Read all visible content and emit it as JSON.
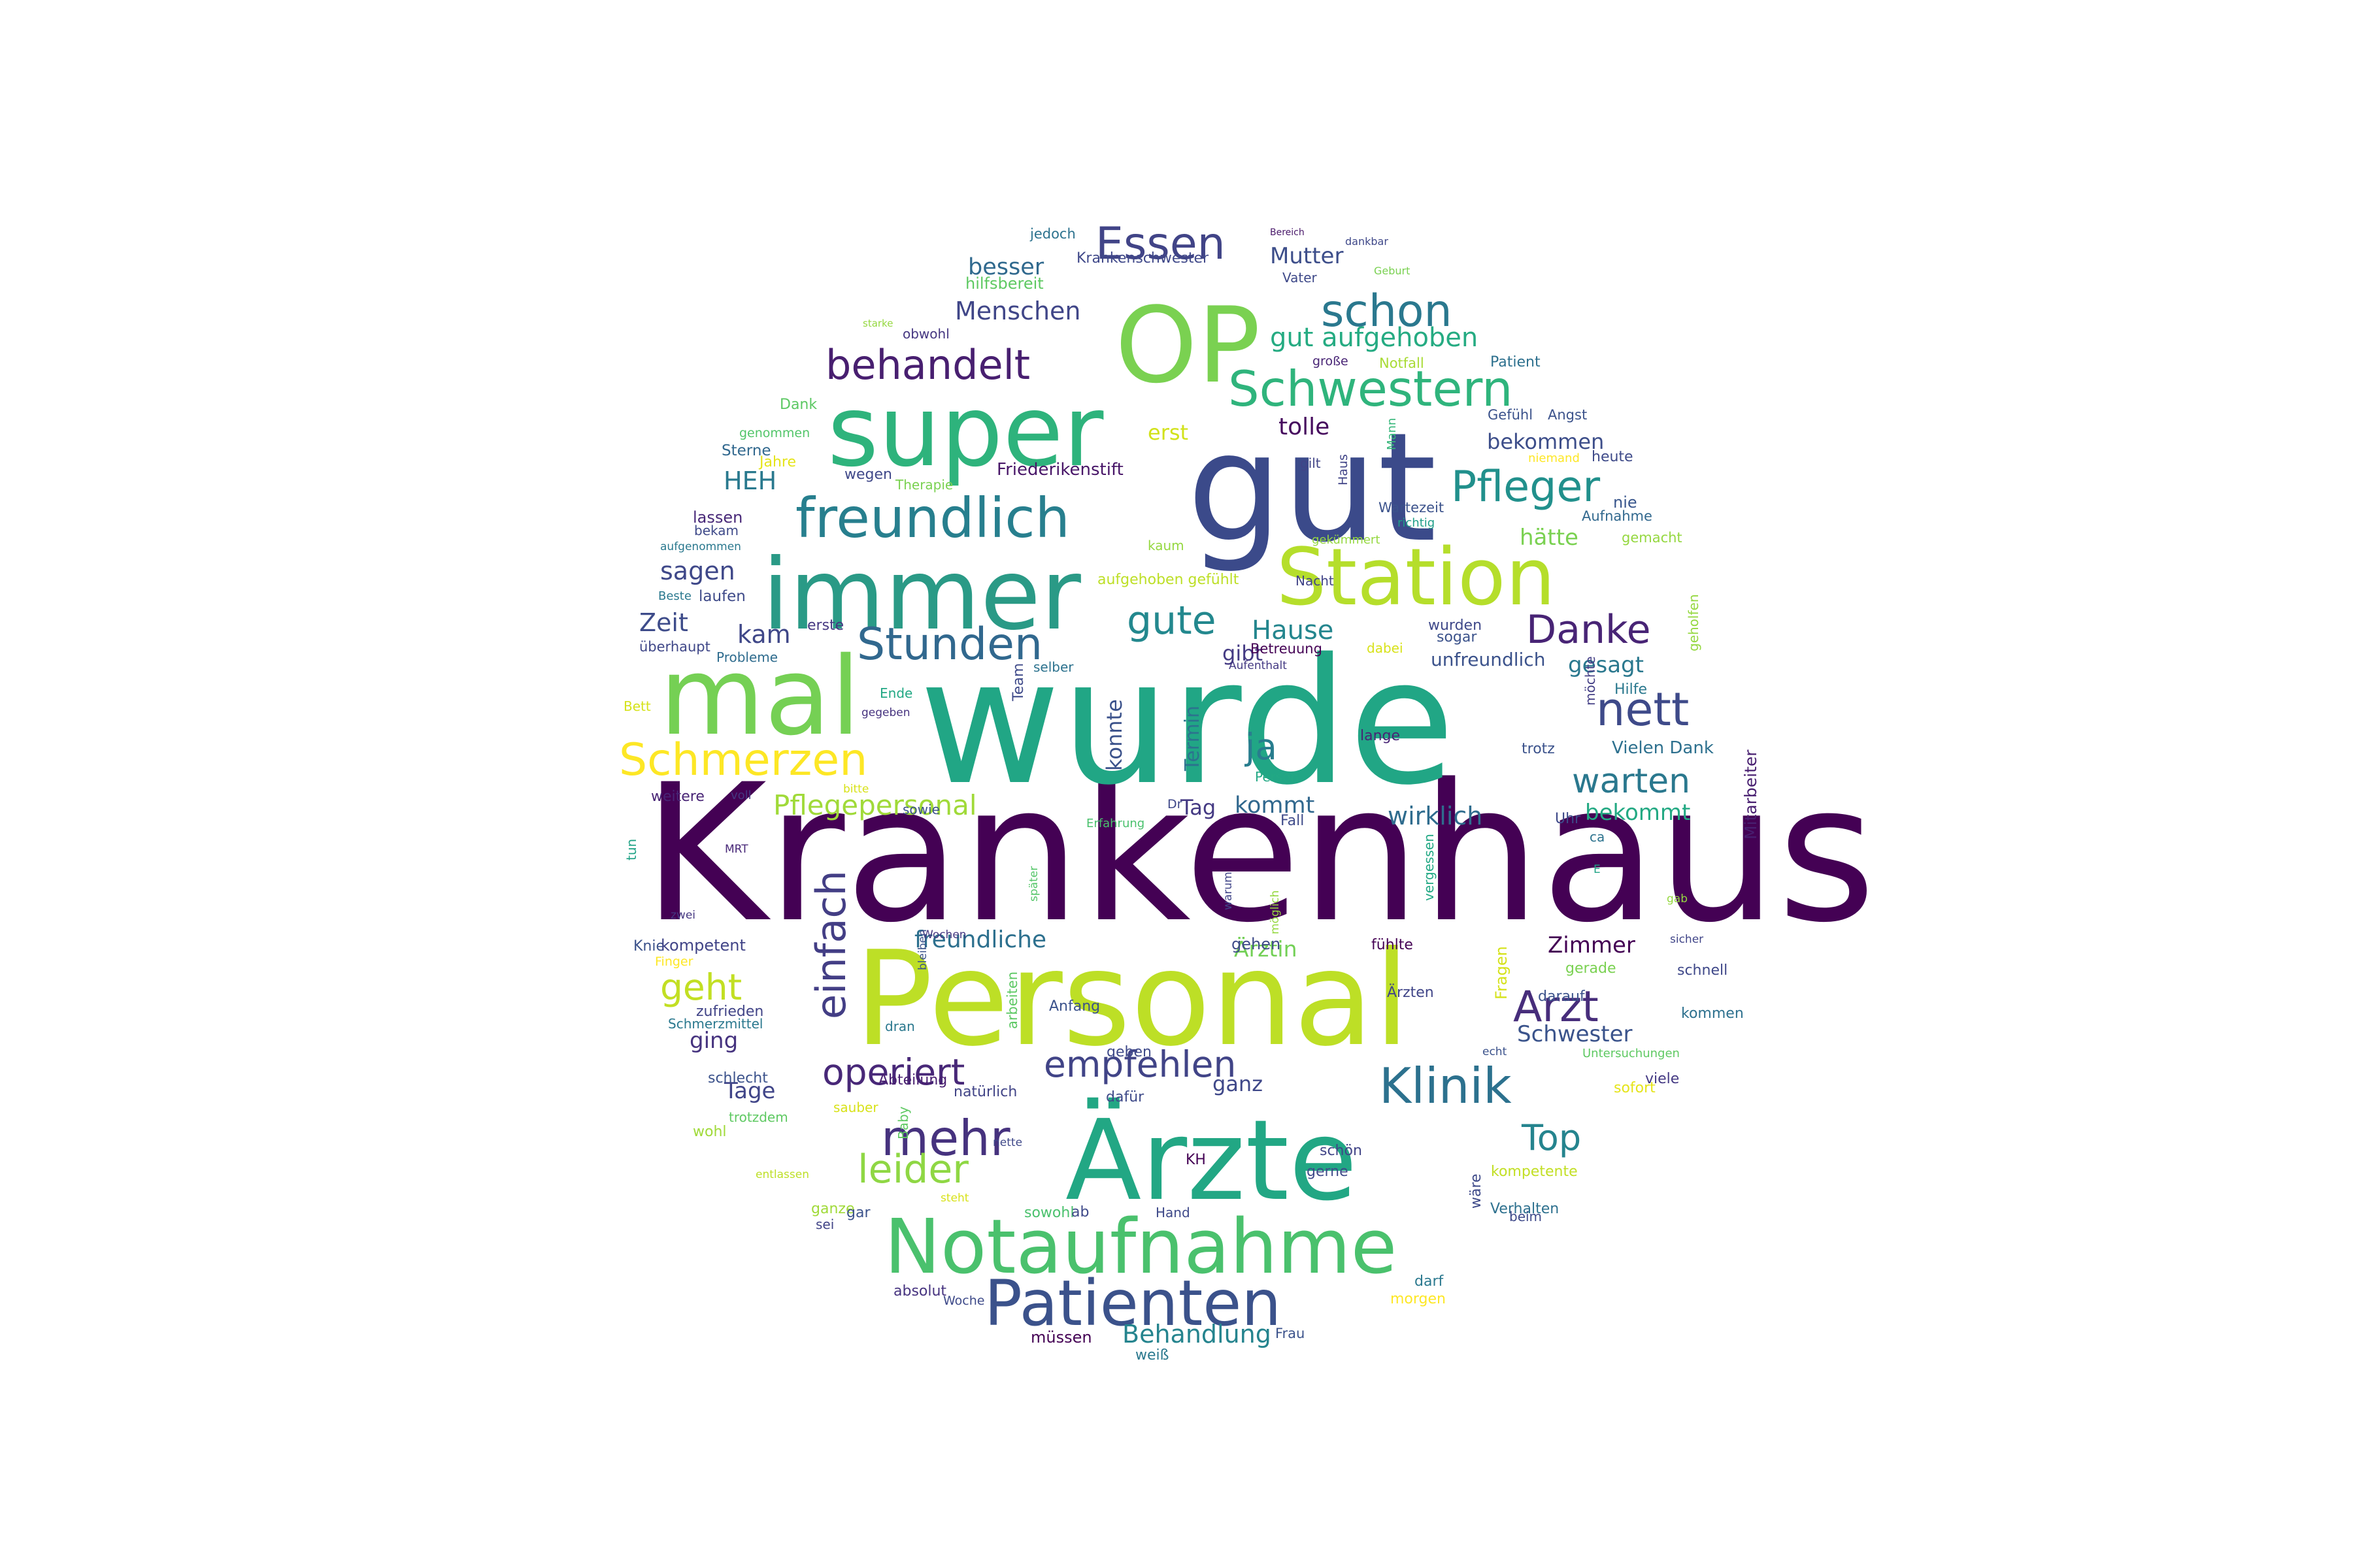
{
  "words": [
    {
      "text": "Krankenhaus",
      "color": "#440154"
    },
    {
      "text": "wurde",
      "color": "#21a685"
    },
    {
      "text": "gut",
      "color": "#3b4a8a"
    },
    {
      "text": "Personal",
      "color": "#bddf26"
    },
    {
      "text": "Ärzte",
      "color": "#22a784"
    },
    {
      "text": "OP",
      "color": "#7ad151"
    },
    {
      "text": "mal",
      "color": "#75d054"
    },
    {
      "text": "immer",
      "color": "#2a9a86"
    },
    {
      "text": "super",
      "color": "#2eb37c"
    },
    {
      "text": "Station",
      "color": "#b5de2b"
    },
    {
      "text": "Notaufnahme",
      "color": "#4ac16d"
    },
    {
      "text": "freundlich",
      "color": "#277f8e"
    },
    {
      "text": "Patienten",
      "color": "#3b528b"
    },
    {
      "text": "Schwestern",
      "color": "#2fb47c"
    },
    {
      "text": "schon",
      "color": "#2a788e"
    },
    {
      "text": "Essen",
      "color": "#414487"
    },
    {
      "text": "behandelt",
      "color": "#481f70"
    },
    {
      "text": "Stunden",
      "color": "#31688e"
    },
    {
      "text": "gute",
      "color": "#23888e"
    },
    {
      "text": "Pfleger",
      "color": "#21908c"
    },
    {
      "text": "Danke",
      "color": "#482475"
    },
    {
      "text": "nett",
      "color": "#3e4a89"
    },
    {
      "text": "Schmerzen",
      "color": "#fde725"
    },
    {
      "text": "einfach",
      "color": "#433e85"
    },
    {
      "text": "Klinik",
      "color": "#2c718e"
    },
    {
      "text": "Arzt",
      "color": "#472d7b"
    },
    {
      "text": "mehr",
      "color": "#46327e"
    },
    {
      "text": "empfehlen",
      "color": "#414487"
    },
    {
      "text": "operiert",
      "color": "#482878"
    },
    {
      "text": "ja",
      "color": "#287d8e"
    },
    {
      "text": "warten",
      "color": "#2a788e"
    },
    {
      "text": "leider",
      "color": "#8fd744"
    },
    {
      "text": "Top",
      "color": "#25848e"
    },
    {
      "text": "geht",
      "color": "#c2df23"
    },
    {
      "text": "Pflegepersonal",
      "color": "#a0da39"
    },
    {
      "text": "gut aufgehoben",
      "color": "#25ab82"
    },
    {
      "text": "Hause",
      "color": "#24868e"
    },
    {
      "text": "Behandlung",
      "color": "#25848e"
    },
    {
      "text": "freundliche",
      "color": "#2d708e"
    },
    {
      "text": "Zeit",
      "color": "#3e4c8a"
    },
    {
      "text": "HEH",
      "color": "#29798e"
    },
    {
      "text": "sagen",
      "color": "#3f4889"
    },
    {
      "text": "Menschen",
      "color": "#404688"
    },
    {
      "text": "besser",
      "color": "#30698e"
    },
    {
      "text": "Mutter",
      "color": "#3d4e8a"
    },
    {
      "text": "tolle",
      "color": "#460b5e"
    },
    {
      "text": "bekommen",
      "color": "#3d4e8a"
    },
    {
      "text": "erst",
      "color": "#d2e21b"
    },
    {
      "text": "hätte",
      "color": "#7ad151"
    },
    {
      "text": "kam",
      "color": "#3f4788"
    },
    {
      "text": "gibt",
      "color": "#443a83"
    },
    {
      "text": "gesagt",
      "color": "#2a788e"
    },
    {
      "text": "Termin",
      "color": "#2c738e"
    },
    {
      "text": "konnte",
      "color": "#3b528b"
    },
    {
      "text": "kommt",
      "color": "#31688e"
    },
    {
      "text": "wirklich",
      "color": "#2f6c8e"
    },
    {
      "text": "bekommt",
      "color": "#23a983"
    },
    {
      "text": "Tag",
      "color": "#443983"
    },
    {
      "text": "Zimmer",
      "color": "#440154"
    },
    {
      "text": "Schwester",
      "color": "#3a538b"
    },
    {
      "text": "Ärztin",
      "color": "#73d056"
    },
    {
      "text": "ging",
      "color": "#46337f"
    },
    {
      "text": "Tage",
      "color": "#404588"
    },
    {
      "text": "ganz",
      "color": "#3f4889"
    },
    {
      "text": "Friederikenstift",
      "color": "#481668"
    },
    {
      "text": "Krankenschwester",
      "color": "#3f4889"
    },
    {
      "text": "hilfsbereit",
      "color": "#5ec962"
    },
    {
      "text": "jedoch",
      "color": "#2c728e"
    },
    {
      "text": "Bereich",
      "color": "#481769"
    },
    {
      "text": "Geburt",
      "color": "#7ad151"
    },
    {
      "text": "dankbar",
      "color": "#3f4889"
    },
    {
      "text": "Vater",
      "color": "#3e4989"
    },
    {
      "text": "starke",
      "color": "#95d840"
    },
    {
      "text": "obwohl",
      "color": "#453781"
    },
    {
      "text": "große",
      "color": "#482475"
    },
    {
      "text": "Notfall",
      "color": "#a8db34"
    },
    {
      "text": "Patient",
      "color": "#2d708e"
    },
    {
      "text": "Dank",
      "color": "#5cc863"
    },
    {
      "text": "genommen",
      "color": "#52c569"
    },
    {
      "text": "gilt",
      "color": "#414487"
    },
    {
      "text": "Gefühl",
      "color": "#3b528b"
    },
    {
      "text": "Angst",
      "color": "#3b528b"
    },
    {
      "text": "Mann",
      "color": "#34b679"
    },
    {
      "text": "niemand",
      "color": "#fde725"
    },
    {
      "text": "heute",
      "color": "#3e4a89"
    },
    {
      "text": "Sterne",
      "color": "#31688e"
    },
    {
      "text": "Jahre",
      "color": "#e5e419"
    },
    {
      "text": "wegen",
      "color": "#3f4889"
    },
    {
      "text": "Therapie",
      "color": "#7ad151"
    },
    {
      "text": "Haus",
      "color": "#414487"
    },
    {
      "text": "Wartezeit",
      "color": "#3b528b"
    },
    {
      "text": "Aufnahme",
      "color": "#31688e"
    },
    {
      "text": "nie",
      "color": "#39568c"
    },
    {
      "text": "lassen",
      "color": "#482878"
    },
    {
      "text": "bekam",
      "color": "#3e4989"
    },
    {
      "text": "aufgenommen",
      "color": "#2a788e"
    },
    {
      "text": "kaum",
      "color": "#95d840"
    },
    {
      "text": "gekümmert",
      "color": "#95d840"
    },
    {
      "text": "richtig",
      "color": "#1f9e89"
    },
    {
      "text": "gemacht",
      "color": "#95d840"
    },
    {
      "text": "Beste",
      "color": "#2a788e"
    },
    {
      "text": "laufen",
      "color": "#3e4a89"
    },
    {
      "text": "aufgehoben gefühlt",
      "color": "#bddf26"
    },
    {
      "text": "Nacht",
      "color": "#414487"
    },
    {
      "text": "wurden",
      "color": "#3f4889"
    },
    {
      "text": "geholfen",
      "color": "#95d840"
    },
    {
      "text": "erste",
      "color": "#453781"
    },
    {
      "text": "sogar",
      "color": "#3b528b"
    },
    {
      "text": "überhaupt",
      "color": "#3f4788"
    },
    {
      "text": "Probleme",
      "color": "#2f6c8e"
    },
    {
      "text": "Team",
      "color": "#3e4989"
    },
    {
      "text": "selber",
      "color": "#2c728e"
    },
    {
      "text": "Betreuung",
      "color": "#440154"
    },
    {
      "text": "dabei",
      "color": "#d8e219"
    },
    {
      "text": "Aufenthalt",
      "color": "#443983"
    },
    {
      "text": "unfreundlich",
      "color": "#3b528b"
    },
    {
      "text": "möchte",
      "color": "#433e85"
    },
    {
      "text": "Hilfe",
      "color": "#2a788e"
    },
    {
      "text": "Ende",
      "color": "#22a884"
    },
    {
      "text": "gegeben",
      "color": "#46337f"
    },
    {
      "text": "Bett",
      "color": "#d5e21a"
    },
    {
      "text": "lange",
      "color": "#482475"
    },
    {
      "text": "trotz",
      "color": "#3b528b"
    },
    {
      "text": "Vielen Dank",
      "color": "#2d708e"
    },
    {
      "text": "Mitarbeiter",
      "color": "#481f70"
    },
    {
      "text": "weitere",
      "color": "#482475"
    },
    {
      "text": "voll",
      "color": "#453781"
    },
    {
      "text": "bitte",
      "color": "#d8e219"
    },
    {
      "text": "Person",
      "color": "#22a884"
    },
    {
      "text": "sowie",
      "color": "#3b528b"
    },
    {
      "text": "Erfahrung",
      "color": "#4ac16d"
    },
    {
      "text": "Dr",
      "color": "#3f4889"
    },
    {
      "text": "Fall",
      "color": "#3e4a89"
    },
    {
      "text": "Uhr",
      "color": "#3e4a89"
    },
    {
      "text": "ca",
      "color": "#2c728e"
    },
    {
      "text": "MRT",
      "color": "#482878"
    },
    {
      "text": "tun",
      "color": "#20a386"
    },
    {
      "text": "später",
      "color": "#54c568"
    },
    {
      "text": "warum",
      "color": "#404588"
    },
    {
      "text": "möglich",
      "color": "#95d840"
    },
    {
      "text": "vergessen",
      "color": "#22a884"
    },
    {
      "text": "E",
      "color": "#20a386"
    },
    {
      "text": "gab",
      "color": "#95d840"
    },
    {
      "text": "zwei",
      "color": "#453781"
    },
    {
      "text": "Wochen",
      "color": "#453781"
    },
    {
      "text": "Knie",
      "color": "#3b528b"
    },
    {
      "text": "kompetent",
      "color": "#414487"
    },
    {
      "text": "Finger",
      "color": "#fde725"
    },
    {
      "text": "bleiben",
      "color": "#3b528b"
    },
    {
      "text": "gehen",
      "color": "#3e4a89"
    },
    {
      "text": "fühlte",
      "color": "#440154"
    },
    {
      "text": "Fragen",
      "color": "#d5e21a"
    },
    {
      "text": "Ärzten",
      "color": "#404588"
    },
    {
      "text": "gerade",
      "color": "#7ad151"
    },
    {
      "text": "sicher",
      "color": "#404588"
    },
    {
      "text": "zufrieden",
      "color": "#414487"
    },
    {
      "text": "Anfang",
      "color": "#3b528b"
    },
    {
      "text": "darauf",
      "color": "#3b528b"
    },
    {
      "text": "schnell",
      "color": "#3f4889"
    },
    {
      "text": "kommen",
      "color": "#2d708e"
    },
    {
      "text": "Schmerzmittel",
      "color": "#2a788e"
    },
    {
      "text": "dran",
      "color": "#2a788e"
    },
    {
      "text": "arbeiten",
      "color": "#5cc863"
    },
    {
      "text": "echt",
      "color": "#3b528b"
    },
    {
      "text": "Untersuchungen",
      "color": "#5ec962"
    },
    {
      "text": "geben",
      "color": "#3e4989"
    },
    {
      "text": "schlecht",
      "color": "#3b528b"
    },
    {
      "text": "viele",
      "color": "#443983"
    },
    {
      "text": "Abteilung",
      "color": "#481f70"
    },
    {
      "text": "natürlich",
      "color": "#414487"
    },
    {
      "text": "dafür",
      "color": "#3e4a89"
    },
    {
      "text": "sofort",
      "color": "#e5e419"
    },
    {
      "text": "trotzdem",
      "color": "#5ec962"
    },
    {
      "text": "sauber",
      "color": "#d8e219"
    },
    {
      "text": "wohl",
      "color": "#a0da39"
    },
    {
      "text": "Baby",
      "color": "#5ec962"
    },
    {
      "text": "nette",
      "color": "#3f4889"
    },
    {
      "text": "schön",
      "color": "#414487"
    },
    {
      "text": "KH",
      "color": "#440154"
    },
    {
      "text": "gerne",
      "color": "#3e4a89"
    },
    {
      "text": "wäre",
      "color": "#3e4a89"
    },
    {
      "text": "kompetente",
      "color": "#c2df23"
    },
    {
      "text": "entlassen",
      "color": "#bddf26"
    },
    {
      "text": "steht",
      "color": "#d8e219"
    },
    {
      "text": "sowohl",
      "color": "#4ac16d"
    },
    {
      "text": "ab",
      "color": "#3e4989"
    },
    {
      "text": "Hand",
      "color": "#3e4989"
    },
    {
      "text": "Verhalten",
      "color": "#2d708e"
    },
    {
      "text": "beim",
      "color": "#3e4989"
    },
    {
      "text": "ganze",
      "color": "#a0da39"
    },
    {
      "text": "gar",
      "color": "#3b528b"
    },
    {
      "text": "sei",
      "color": "#414487"
    },
    {
      "text": "absolut",
      "color": "#46337f"
    },
    {
      "text": "Woche",
      "color": "#3e4a89"
    },
    {
      "text": "darf",
      "color": "#2a788e"
    },
    {
      "text": "morgen",
      "color": "#fde725"
    },
    {
      "text": "müssen",
      "color": "#440154"
    },
    {
      "text": "Frau",
      "color": "#3b528b"
    },
    {
      "text": "weiß",
      "color": "#2a788e"
    },
    {
      "text": "macht",
      "color": "#5cc863"
    }
  ]
}
